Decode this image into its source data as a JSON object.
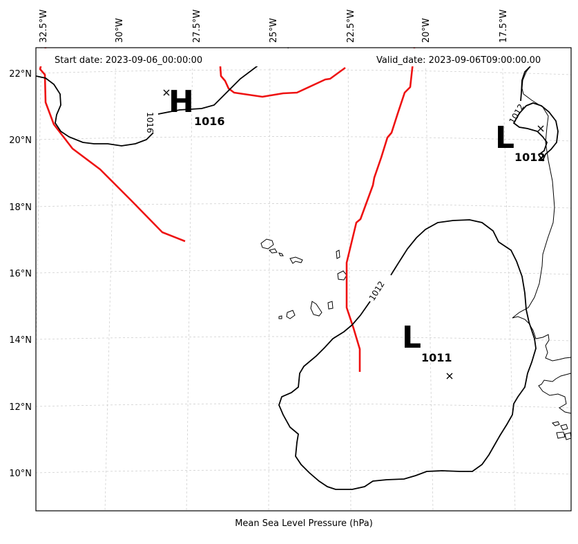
{
  "map": {
    "caption": "Mean Sea Level Pressure (hPa)",
    "start_date": "Start date: 2023-09-06_00:00:00",
    "valid_date": "Valid_date: 2023-09-06T09:00:00.00",
    "lon_ticks": [
      "32.5°W",
      "30°W",
      "27.5°W",
      "25°W",
      "22.5°W",
      "20°W",
      "17.5°W"
    ],
    "lat_ticks": [
      "22°N",
      "20°N",
      "18°N",
      "16°N",
      "14°N",
      "12°N",
      "10°N"
    ],
    "pressure_centers": [
      {
        "type": "H",
        "value": "1016"
      },
      {
        "type": "L",
        "value": "1012"
      },
      {
        "type": "L",
        "value": "1011"
      }
    ],
    "contour_labels": [
      "1016",
      "1012",
      "1012"
    ],
    "colors": {
      "front": "#ee1111",
      "isobar": "#000000",
      "grid": "#cfcfcf"
    }
  }
}
